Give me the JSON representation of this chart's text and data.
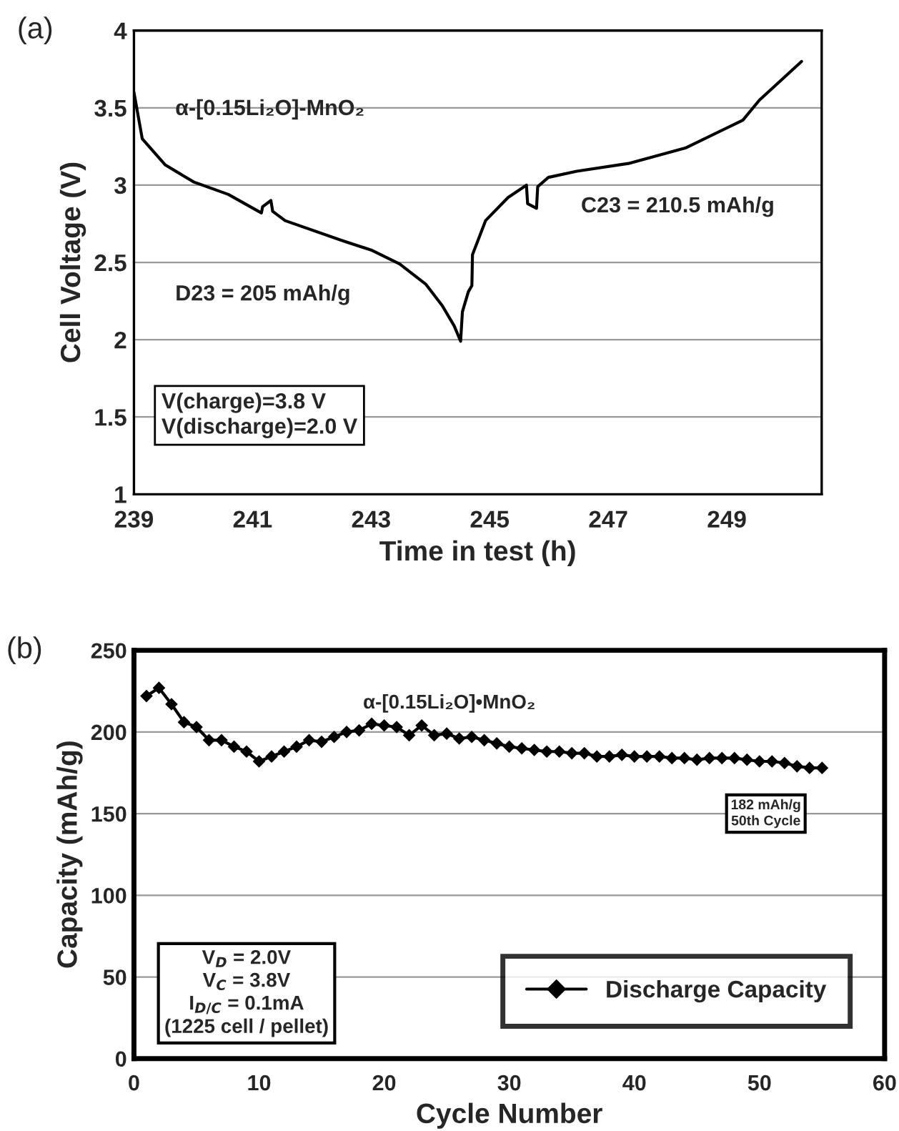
{
  "chart_data": [
    {
      "type": "line",
      "xlabel": "Time in test (h)",
      "ylabel": "Cell Voltage (V)",
      "annotations": [
        "(a)",
        "α-[0.15Li₂O]-MnO₂",
        "D23 = 205 mAh/g",
        "C23 = 210.5 mAh/g",
        "V(charge)=3.8 V\nV(discharge)=2.0 V"
      ],
      "series": [
        {
          "color": "#000000",
          "x": [
            239,
            239.14,
            239.53,
            240.01,
            240.59,
            241.15,
            241.17,
            241.31,
            241.34,
            241.55,
            242.52,
            243.0,
            243.48,
            243.92,
            244.2,
            244.4,
            244.51,
            244.54,
            244.64,
            244.7,
            244.71,
            244.93,
            245.31,
            245.62,
            245.64,
            245.79,
            245.81,
            245.99,
            246.47,
            247.34,
            248.3,
            249.27,
            249.55,
            250.26
          ],
          "values": [
            3.6,
            3.3,
            3.13,
            3.02,
            2.94,
            2.82,
            2.86,
            2.9,
            2.83,
            2.77,
            2.64,
            2.58,
            2.49,
            2.36,
            2.22,
            2.09,
            1.99,
            2.18,
            2.31,
            2.35,
            2.55,
            2.77,
            2.92,
            3.0,
            2.88,
            2.85,
            2.99,
            3.05,
            3.09,
            3.14,
            3.24,
            3.42,
            3.55,
            3.8
          ]
        }
      ],
      "xlim": [
        239,
        250.6
      ],
      "xticks": [
        239,
        241,
        243,
        245,
        247,
        249
      ],
      "ylim": [
        1,
        4
      ],
      "yticks": [
        1,
        1.5,
        2,
        2.5,
        3,
        3.5,
        4
      ],
      "grid": "y",
      "marker": "none",
      "line_style": "solid"
    },
    {
      "type": "line",
      "xlabel": "Cycle Number",
      "ylabel": "Capacity (mAh/g)",
      "annotations": [
        "(b)",
        "α-[0.15Li₂O]•MnO₂",
        "182 mAh/g\n50th Cycle",
        "V$_{D}$ = 2.0V\nV$_{C}$ = 3.8V\nI$_{D/C}$ = 0.1mA\n(1225 cell / pellet)"
      ],
      "x": [
        1,
        2,
        3,
        4,
        5,
        6,
        7,
        8,
        9,
        10,
        11,
        12,
        13,
        14,
        15,
        16,
        17,
        18,
        19,
        20,
        21,
        22,
        23,
        24,
        25,
        26,
        27,
        28,
        29,
        30,
        31,
        32,
        33,
        34,
        35,
        36,
        37,
        38,
        39,
        40,
        41,
        42,
        43,
        44,
        45,
        46,
        47,
        48,
        49,
        50,
        51,
        52,
        53,
        54,
        55
      ],
      "series": [
        {
          "name": "Discharge Capacity",
          "color": "#000000",
          "values": [
            222,
            227,
            217,
            206,
            203,
            195,
            195,
            191,
            188,
            182,
            185,
            188,
            191,
            195,
            194,
            197,
            200,
            201,
            205,
            204,
            203,
            198,
            204,
            198,
            199,
            196,
            197,
            195,
            193,
            191,
            190,
            189,
            188,
            188,
            187,
            187,
            185,
            185,
            186,
            185,
            185,
            185,
            184,
            184,
            183,
            184,
            184,
            184,
            183,
            182,
            182,
            181,
            179,
            178,
            178
          ]
        }
      ],
      "xlim": [
        0,
        60
      ],
      "xticks": [
        0,
        10,
        20,
        30,
        40,
        50,
        60
      ],
      "ylim": [
        0,
        250
      ],
      "yticks": [
        0,
        50,
        100,
        150,
        200,
        250
      ],
      "grid": "y",
      "marker": "diamond",
      "line_style": "solid",
      "legend": "bottom right"
    }
  ]
}
